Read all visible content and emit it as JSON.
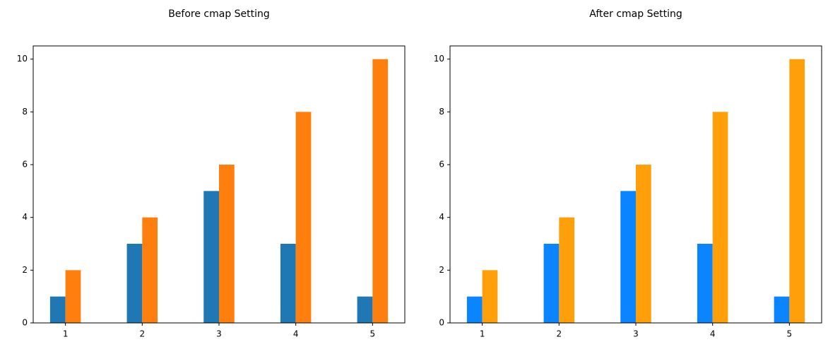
{
  "chart_data": [
    {
      "type": "bar",
      "title": "Before cmap Setting",
      "x": [
        1,
        2,
        3,
        4,
        5
      ],
      "series": [
        {
          "color": "#1f77b4",
          "values": [
            1,
            3,
            5,
            3,
            1
          ]
        },
        {
          "color": "#ff7f0e",
          "values": [
            2,
            4,
            6,
            8,
            10
          ]
        }
      ],
      "xlim": [
        0.58,
        5.42
      ],
      "xticks": [
        1,
        2,
        3,
        4,
        5
      ],
      "ylim": [
        0,
        10.5
      ],
      "yticks": [
        0,
        2,
        4,
        6,
        8,
        10
      ],
      "grid": false
    },
    {
      "type": "bar",
      "title": "After cmap Setting",
      "x": [
        1,
        2,
        3,
        4,
        5
      ],
      "series": [
        {
          "color": "#0a84ff",
          "values": [
            1,
            3,
            5,
            3,
            1
          ]
        },
        {
          "color": "#ff9f0a",
          "values": [
            2,
            4,
            6,
            8,
            10
          ]
        }
      ],
      "xlim": [
        0.58,
        5.42
      ],
      "xticks": [
        1,
        2,
        3,
        4,
        5
      ],
      "ylim": [
        0,
        10.5
      ],
      "yticks": [
        0,
        2,
        4,
        6,
        8,
        10
      ],
      "grid": false
    }
  ]
}
